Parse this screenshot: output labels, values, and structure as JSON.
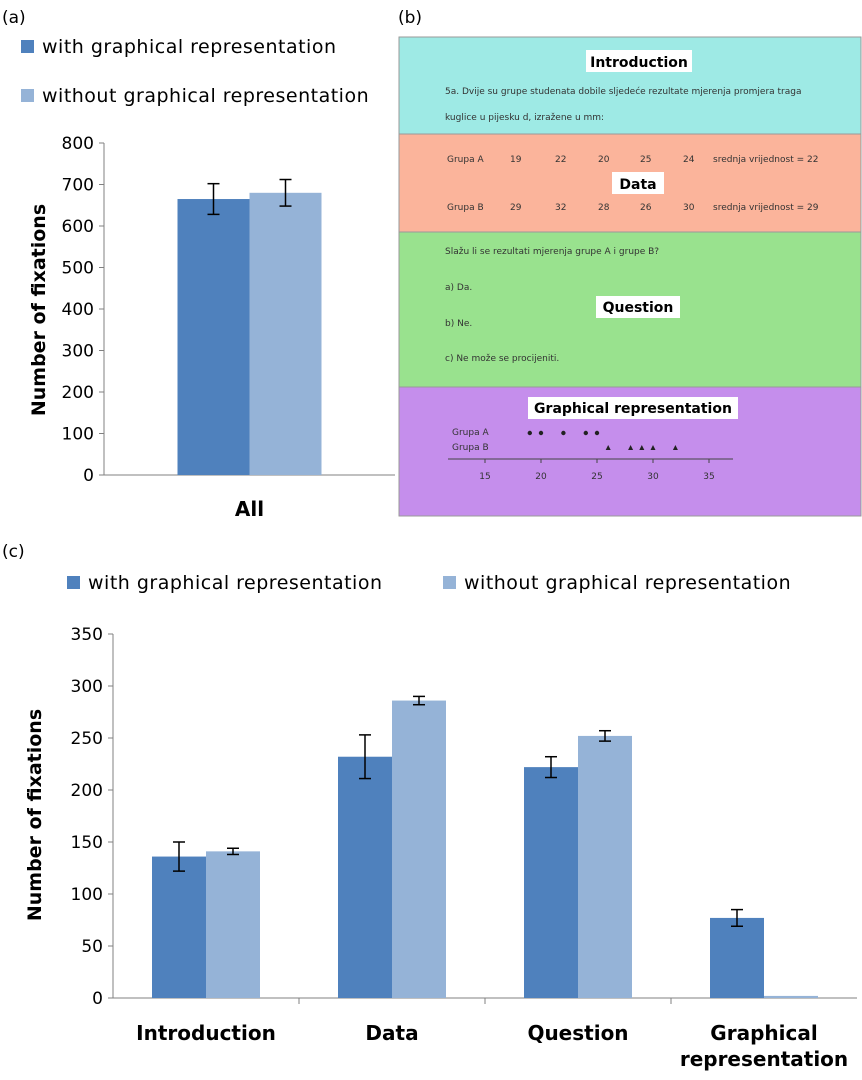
{
  "colors": {
    "with": "#4f81bd",
    "without": "#95b3d7",
    "intro_bg": "#9eeae5",
    "data_bg": "#fbb49b",
    "question_bg": "#99e28e",
    "graph_bg": "#c58eec"
  },
  "panel_a": {
    "label": "(a)",
    "chart_data": {
      "type": "bar",
      "categories": [
        "All"
      ],
      "series": [
        {
          "name": "with graphical representation",
          "values": [
            665
          ],
          "errors": [
            37
          ]
        },
        {
          "name": "without graphical representation",
          "values": [
            680
          ],
          "errors": [
            32
          ]
        }
      ],
      "ylabel": "Number of fixations",
      "ylim": [
        0,
        800
      ],
      "yticks": [
        "0",
        "100",
        "200",
        "300",
        "400",
        "500",
        "600",
        "700",
        "800"
      ],
      "legend": "top-left"
    }
  },
  "panel_b": {
    "label": "(b)",
    "introduction": {
      "title": "Introduction",
      "line1": "5a. Dvije su grupe studenata dobile sljedeće rezultate mjerenja promjera traga",
      "line2": "kuglice u pijesku d, izražene u mm:"
    },
    "data": {
      "title": "Data",
      "rowA": [
        "Grupa A",
        "19",
        "22",
        "20",
        "25",
        "24",
        "srednja vrijednost = 22"
      ],
      "rowB": [
        "Grupa B",
        "29",
        "32",
        "28",
        "26",
        "30",
        "srednja vrijednost = 29"
      ]
    },
    "question": {
      "title": "Question",
      "text": "Slažu li se rezultati mjerenja grupe A i grupe B?",
      "a": "a) Da.",
      "b": "b) Ne.",
      "c": "c) Ne može se procijeniti."
    },
    "graphical": {
      "title": "Graphical representation",
      "label_a": "Grupa A",
      "label_b": "Grupa B",
      "ticks": [
        "15",
        "20",
        "25",
        "30",
        "35"
      ],
      "points_a": [
        19,
        20,
        22,
        24,
        25
      ],
      "points_b": [
        26,
        28,
        29,
        30,
        32
      ]
    }
  },
  "panel_c": {
    "label": "(c)",
    "chart_data": {
      "type": "bar",
      "categories": [
        "Introduction",
        "Data",
        "Question",
        "Graphical representation"
      ],
      "series": [
        {
          "name": "with graphical representation",
          "values": [
            136,
            232,
            222,
            77
          ],
          "errors": [
            14,
            21,
            10,
            8
          ]
        },
        {
          "name": "without graphical representation",
          "values": [
            141,
            286,
            252,
            2
          ],
          "errors": [
            3,
            4,
            5,
            0
          ]
        }
      ],
      "ylabel": "Number of fixations",
      "ylim": [
        0,
        350
      ],
      "yticks": [
        "0",
        "50",
        "100",
        "150",
        "200",
        "250",
        "300",
        "350"
      ],
      "legend": "top"
    }
  }
}
